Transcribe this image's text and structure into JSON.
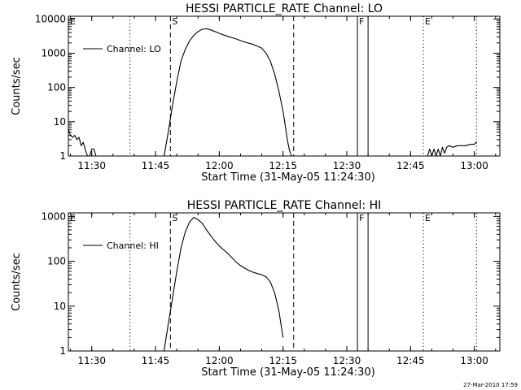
{
  "footer": {
    "timestamp": "27-Mar-2010 17:59"
  },
  "chart_data": [
    {
      "type": "line",
      "title": "HESSI PARTICLE_RATE Channel: LO",
      "xlabel": "Start Time (31-May-05 11:24:30)",
      "ylabel": "Counts/sec",
      "yscale": "log",
      "ylim": [
        1,
        12000
      ],
      "xlim": [
        "11:24:30",
        "13:06:00"
      ],
      "x_ticks": [
        "11:30",
        "11:45",
        "12:00",
        "12:15",
        "12:30",
        "12:45",
        "13:00"
      ],
      "y_ticks": [
        "1",
        "10",
        "100",
        "1000",
        "10000"
      ],
      "legend": {
        "label": "Channel: LO",
        "position": "top-left"
      },
      "markers": [
        {
          "label": "E",
          "time": "11:24:30",
          "style": "dotted"
        },
        {
          "label": "",
          "time": "11:39:00",
          "style": "dotted"
        },
        {
          "label": "S",
          "time": "11:48:30",
          "style": "dashed"
        },
        {
          "label": "",
          "time": "12:17:30",
          "style": "dashed"
        },
        {
          "label": "F",
          "time": "12:32:30",
          "style": "solid"
        },
        {
          "label": "",
          "time": "12:35:00",
          "style": "solid"
        },
        {
          "label": "E",
          "time": "12:48:00",
          "style": "dotted"
        },
        {
          "label": "",
          "time": "13:00:30",
          "style": "dotted"
        }
      ],
      "segments": [
        {
          "x": [
            "11:24:30",
            "11:25:00",
            "11:25:30",
            "11:26:00",
            "11:26:30",
            "11:27:00",
            "11:27:30",
            "11:28:00",
            "11:28:30",
            "11:29:00",
            "11:29:30",
            "11:30:00",
            "11:30:30",
            "11:31:00",
            "11:31:30"
          ],
          "y": [
            6,
            4,
            3.5,
            4,
            3,
            3.5,
            2,
            2.5,
            1.5,
            1,
            1,
            1.6,
            1.6,
            1,
            1
          ]
        },
        {
          "x": [
            "11:47:00",
            "11:48:00",
            "11:49:00",
            "11:50:00",
            "11:51:00",
            "11:52:00",
            "11:53:00",
            "11:54:00",
            "11:55:00",
            "11:56:00",
            "11:57:00",
            "11:58:00",
            "11:59:00",
            "12:00:00",
            "12:02:00",
            "12:04:00",
            "12:06:00",
            "12:08:00",
            "12:10:00",
            "12:11:00",
            "12:12:00",
            "12:13:00",
            "12:14:00",
            "12:15:00",
            "12:15:30",
            "12:16:00",
            "12:16:30",
            "12:17:00"
          ],
          "y": [
            1,
            5,
            30,
            150,
            600,
            1300,
            2300,
            3300,
            4300,
            5000,
            5200,
            4800,
            4300,
            3800,
            3100,
            2600,
            2100,
            1800,
            1400,
            1000,
            600,
            250,
            80,
            20,
            8,
            3,
            1.5,
            1
          ]
        },
        {
          "x": [
            "12:49:00",
            "12:49:30",
            "12:50:00",
            "12:50:30",
            "12:51:00",
            "12:51:30",
            "12:52:00",
            "12:52:30",
            "12:53:00",
            "12:53:30",
            "12:54:00",
            "12:55:00",
            "12:56:00",
            "12:57:00",
            "12:58:00",
            "12:59:00",
            "13:00:00",
            "13:00:30"
          ],
          "y": [
            1,
            1.6,
            1,
            1.6,
            1,
            1.6,
            1,
            1.8,
            1.2,
            1.8,
            2,
            1.8,
            2,
            2,
            2,
            2.2,
            2.2,
            2.6
          ]
        }
      ]
    },
    {
      "type": "line",
      "title": "HESSI PARTICLE_RATE Channel: HI",
      "xlabel": "Start Time (31-May-05 11:24:30)",
      "ylabel": "Counts/sec",
      "yscale": "log",
      "ylim": [
        1,
        1200
      ],
      "xlim": [
        "11:24:30",
        "13:06:00"
      ],
      "x_ticks": [
        "11:30",
        "11:45",
        "12:00",
        "12:15",
        "12:30",
        "12:45",
        "13:00"
      ],
      "y_ticks": [
        "1",
        "10",
        "100",
        "1000"
      ],
      "legend": {
        "label": "Channel: HI",
        "position": "top-left"
      },
      "markers": [
        {
          "label": "E",
          "time": "11:24:30",
          "style": "dotted"
        },
        {
          "label": "",
          "time": "11:39:00",
          "style": "dotted"
        },
        {
          "label": "S",
          "time": "11:48:30",
          "style": "dashed"
        },
        {
          "label": "",
          "time": "12:17:30",
          "style": "dashed"
        },
        {
          "label": "F",
          "time": "12:32:30",
          "style": "solid"
        },
        {
          "label": "",
          "time": "12:35:00",
          "style": "solid"
        },
        {
          "label": "E",
          "time": "12:48:00",
          "style": "dotted"
        },
        {
          "label": "",
          "time": "13:00:30",
          "style": "dotted"
        }
      ],
      "segments": [
        {
          "x": [
            "11:47:00",
            "11:47:30",
            "11:48:00",
            "11:49:00",
            "11:50:00",
            "11:51:00",
            "11:52:00",
            "11:53:00",
            "11:54:00",
            "11:55:00",
            "11:56:00",
            "11:57:00",
            "11:58:00",
            "11:59:00",
            "12:00:00",
            "12:01:00",
            "12:02:00",
            "12:03:00",
            "12:04:00",
            "12:05:00",
            "12:06:00",
            "12:07:00",
            "12:08:00",
            "12:09:00",
            "12:10:00",
            "12:11:00",
            "12:12:00",
            "12:13:00",
            "12:14:00",
            "12:15:00"
          ],
          "y": [
            1,
            2,
            4,
            15,
            60,
            200,
            450,
            750,
            950,
            850,
            700,
            500,
            370,
            280,
            220,
            180,
            150,
            120,
            95,
            80,
            70,
            62,
            57,
            53,
            50,
            45,
            35,
            20,
            8,
            2
          ]
        }
      ]
    }
  ]
}
